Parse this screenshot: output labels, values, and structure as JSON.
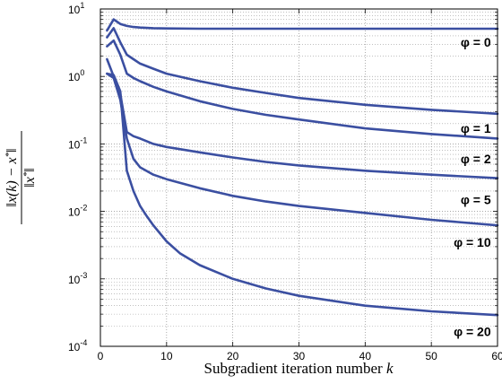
{
  "chart_data": {
    "type": "line",
    "xlabel": "Subgradient iteration number k",
    "ylabel": "‖x(k) − x*‖ / ‖x*‖",
    "xlim": [
      0,
      60
    ],
    "ylim": [
      0.0001,
      10
    ],
    "yscale": "log",
    "grid": true,
    "line_color": "#3b4fa1",
    "x_ticks": [
      "0",
      "10",
      "20",
      "30",
      "40",
      "50",
      "60"
    ],
    "y_ticks": [
      {
        "base": "10",
        "exp": "-4",
        "value": 0.0001
      },
      {
        "base": "10",
        "exp": "-3",
        "value": 0.001
      },
      {
        "base": "10",
        "exp": "-2",
        "value": 0.01
      },
      {
        "base": "10",
        "exp": "-1",
        "value": 0.1
      },
      {
        "base": "10",
        "exp": "0",
        "value": 1
      },
      {
        "base": "10",
        "exp": "1",
        "value": 10
      }
    ],
    "series": [
      {
        "name": "φ = 0",
        "x": [
          1,
          2,
          3,
          4,
          5,
          6,
          8,
          10,
          15,
          20,
          30,
          40,
          50,
          60
        ],
        "y": [
          4.8,
          7.0,
          6.0,
          5.6,
          5.4,
          5.3,
          5.2,
          5.15,
          5.1,
          5.1,
          5.1,
          5.1,
          5.1,
          5.1
        ]
      },
      {
        "name": "φ = 1",
        "x": [
          1,
          2,
          3,
          4,
          5,
          6,
          8,
          10,
          15,
          20,
          25,
          30,
          40,
          50,
          60
        ],
        "y": [
          3.8,
          5.2,
          3.2,
          2.1,
          1.8,
          1.55,
          1.3,
          1.1,
          0.85,
          0.68,
          0.57,
          0.48,
          0.38,
          0.32,
          0.28
        ]
      },
      {
        "name": "φ = 2",
        "x": [
          1,
          2,
          3,
          4,
          5,
          6,
          8,
          10,
          15,
          20,
          25,
          30,
          40,
          50,
          60
        ],
        "y": [
          2.8,
          3.4,
          2.1,
          1.1,
          0.95,
          0.85,
          0.7,
          0.6,
          0.43,
          0.33,
          0.27,
          0.23,
          0.17,
          0.14,
          0.12
        ]
      },
      {
        "name": "φ = 5",
        "x": [
          1,
          2,
          3,
          4,
          5,
          6,
          8,
          10,
          15,
          20,
          25,
          30,
          40,
          50,
          60
        ],
        "y": [
          1.8,
          1.0,
          0.55,
          0.15,
          0.13,
          0.12,
          0.1,
          0.09,
          0.075,
          0.063,
          0.054,
          0.048,
          0.04,
          0.035,
          0.031
        ]
      },
      {
        "name": "φ = 10",
        "x": [
          1,
          2,
          3,
          4,
          5,
          6,
          8,
          10,
          15,
          20,
          25,
          30,
          40,
          50,
          60
        ],
        "y": [
          1.1,
          0.95,
          0.45,
          0.12,
          0.06,
          0.045,
          0.035,
          0.03,
          0.022,
          0.017,
          0.014,
          0.012,
          0.0095,
          0.0075,
          0.0062
        ]
      },
      {
        "name": "φ = 20",
        "x": [
          1,
          2,
          3,
          4,
          5,
          6,
          7,
          8,
          10,
          12,
          15,
          20,
          25,
          30,
          40,
          50,
          60
        ],
        "y": [
          1.1,
          1.05,
          0.6,
          0.04,
          0.02,
          0.012,
          0.0085,
          0.0062,
          0.0036,
          0.0024,
          0.0016,
          0.001,
          0.00072,
          0.00056,
          0.0004,
          0.00033,
          0.00029
        ]
      }
    ],
    "annotations": [
      {
        "text": "φ = 0",
        "x": 59,
        "y": 3.2
      },
      {
        "text": "φ = 1",
        "x": 59,
        "y": 0.17
      },
      {
        "text": "φ = 2",
        "x": 59,
        "y": 0.06
      },
      {
        "text": "φ = 5",
        "x": 59,
        "y": 0.015
      },
      {
        "text": "φ = 10",
        "x": 59,
        "y": 0.0035
      },
      {
        "text": "φ = 20",
        "x": 59,
        "y": 0.000165
      }
    ]
  }
}
